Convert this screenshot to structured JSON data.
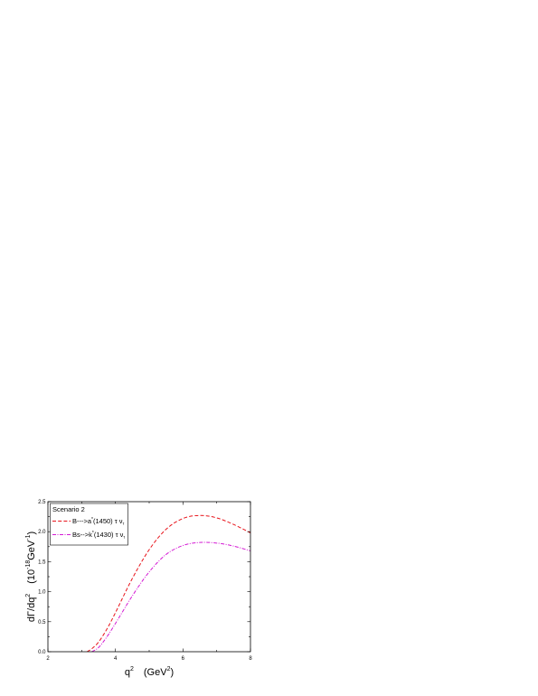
{
  "chart_data": {
    "type": "line",
    "title": "",
    "xlabel": {
      "base": "q",
      "sup": "2",
      "unit_open": "(GeV",
      "unit_sup": "2",
      "unit_close": ")"
    },
    "ylabel": {
      "base": "dΓ/dq",
      "sup": "2",
      "unit_open": "(10",
      "unit_sup": "-18",
      "unit_mid": "GeV",
      "unit_sup2": "-1",
      "unit_close": ")"
    },
    "xlim": [
      2,
      8
    ],
    "ylim": [
      0,
      2.5
    ],
    "xticks": [
      "2",
      "4",
      "6",
      "8"
    ],
    "yticks": [
      "0.0",
      "0.5",
      "1.0",
      "1.5",
      "2.0",
      "2.5"
    ],
    "legend": {
      "title": "Scenario 2",
      "placement": "top-left",
      "entries": [
        {
          "pre": "B--->a",
          "sup": "*",
          "post": "(1450) τ ν",
          "sub": "τ"
        },
        {
          "pre": "Bs-->k",
          "sup": "*",
          "post": "(1430) τ ν",
          "sub": "τ"
        }
      ]
    },
    "series": [
      {
        "color": "#e8141b",
        "dash": "4,2.2",
        "x": [
          3.16,
          3.3,
          3.5,
          3.75,
          4.0,
          4.5,
          5.0,
          5.5,
          6.0,
          6.5,
          7.0,
          7.5,
          8.0
        ],
        "y": [
          0.0,
          0.05,
          0.16,
          0.38,
          0.65,
          1.22,
          1.7,
          2.04,
          2.22,
          2.27,
          2.23,
          2.12,
          1.98
        ]
      },
      {
        "color": "#d41ad4",
        "dash": "4,1.5,1,1.5",
        "x": [
          3.3,
          3.5,
          3.75,
          4.0,
          4.5,
          5.0,
          5.5,
          6.0,
          6.5,
          7.0,
          7.5,
          8.0
        ],
        "y": [
          0.0,
          0.07,
          0.25,
          0.47,
          0.93,
          1.33,
          1.62,
          1.77,
          1.82,
          1.81,
          1.76,
          1.68
        ]
      }
    ]
  }
}
